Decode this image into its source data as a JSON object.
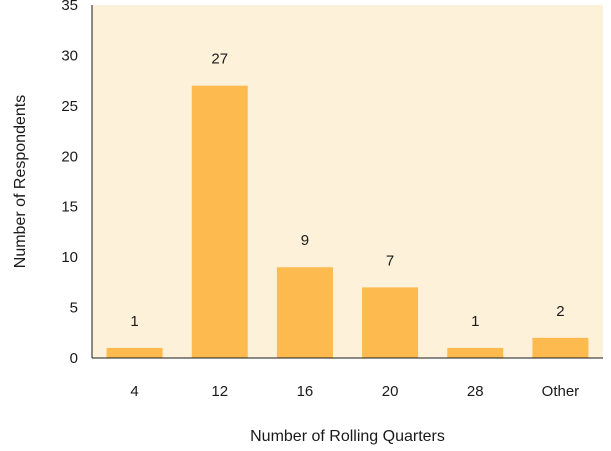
{
  "chart_data": {
    "type": "bar",
    "categories": [
      "4",
      "12",
      "16",
      "20",
      "28",
      "Other"
    ],
    "values": [
      1,
      27,
      9,
      7,
      1,
      2
    ],
    "data_labels": [
      "1",
      "27",
      "9",
      "7",
      "1",
      "2"
    ],
    "title": "",
    "xlabel": "Number of Rolling Quarters",
    "ylabel": "Number of Respondents",
    "ylim": [
      0,
      35
    ],
    "yticks": [
      0,
      5,
      10,
      15,
      20,
      25,
      30,
      35
    ],
    "ytick_labels": [
      "0",
      "5",
      "10",
      "15",
      "20",
      "25",
      "30",
      "35"
    ],
    "grid": false,
    "colors": {
      "bar": "#FDBA4E",
      "plot_background": "#FEF1DA",
      "axis": "#1a1a1a"
    }
  }
}
